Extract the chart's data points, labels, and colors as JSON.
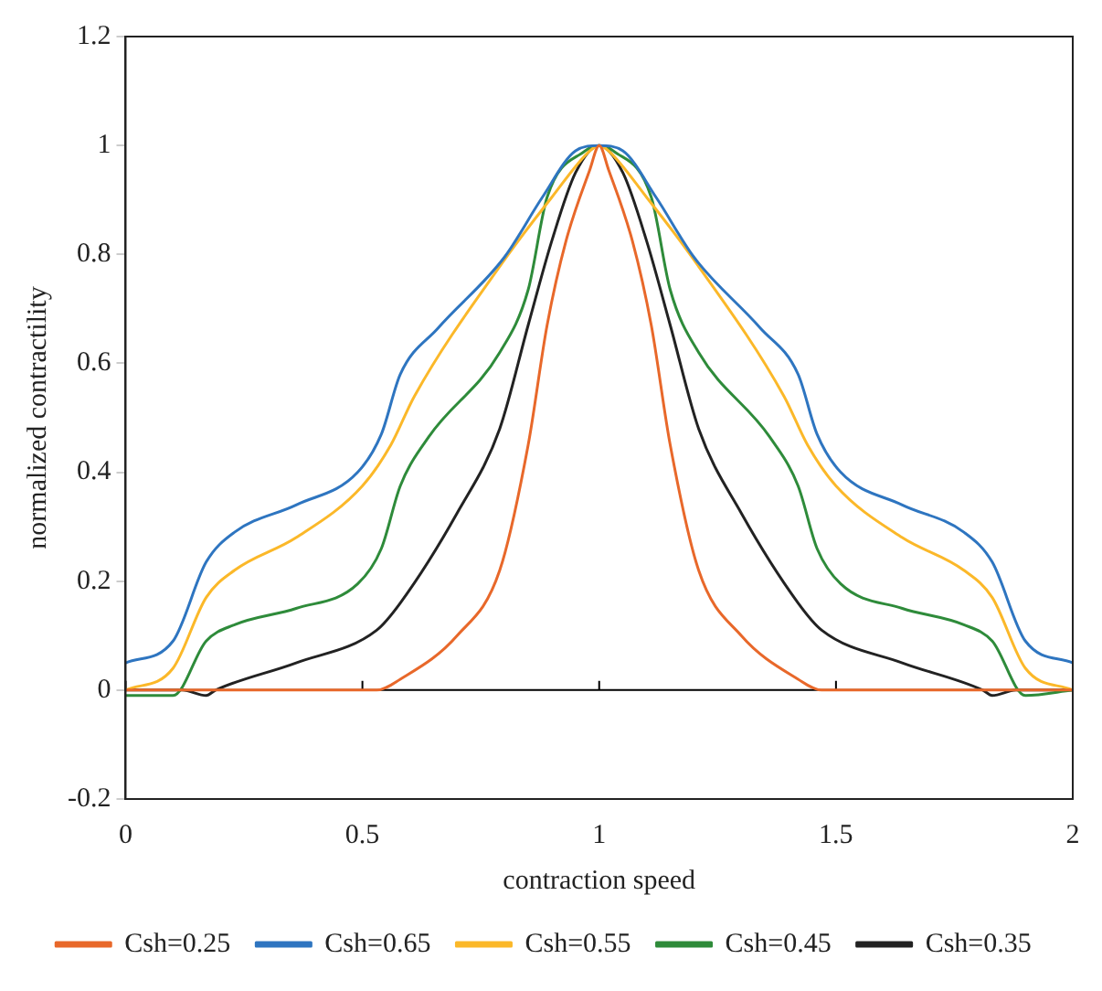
{
  "chart_data": {
    "type": "line",
    "xlabel": "contraction speed",
    "ylabel": "normalized contractility",
    "xlim": [
      0,
      2
    ],
    "xticks": [
      0,
      0.5,
      1,
      1.5,
      2
    ],
    "ylim": [
      -0.2,
      1.2
    ],
    "yticks": [
      -0.2,
      0,
      0.2,
      0.4,
      0.6,
      0.8,
      1,
      1.2
    ],
    "grid": false,
    "legend": "bottom",
    "marker": "none",
    "line_style": "solid",
    "ref_lines": [
      {
        "axis": "y",
        "value": 0,
        "color": "#000000"
      }
    ],
    "series": [
      {
        "name": "Csh=0.25",
        "color": "#e8682a",
        "x": [
          0,
          0.3,
          0.53,
          0.58,
          0.7,
          0.79,
          0.85,
          0.89,
          0.93,
          0.98,
          1,
          1.02,
          1.07,
          1.11,
          1.15,
          1.21,
          1.3,
          1.42,
          1.47,
          1.7,
          2
        ],
        "values": [
          0,
          0,
          0,
          0.02,
          0.1,
          0.22,
          0.45,
          0.67,
          0.825,
          0.955,
          1,
          0.955,
          0.825,
          0.67,
          0.45,
          0.22,
          0.1,
          0.02,
          0,
          0,
          0
        ]
      },
      {
        "name": "Csh=0.65",
        "color": "#2e75c0",
        "x": [
          0,
          0.1,
          0.17,
          0.23,
          0.36,
          0.49,
          0.54,
          0.58,
          0.66,
          0.8,
          0.88,
          0.95,
          1,
          1.05,
          1.12,
          1.2,
          1.34,
          1.42,
          1.46,
          1.51,
          1.64,
          1.77,
          1.83,
          1.9,
          2
        ],
        "values": [
          0.05,
          0.09,
          0.235,
          0.29,
          0.34,
          0.4,
          0.47,
          0.58,
          0.665,
          0.795,
          0.905,
          0.99,
          1,
          0.99,
          0.905,
          0.795,
          0.665,
          0.58,
          0.47,
          0.4,
          0.34,
          0.29,
          0.235,
          0.09,
          0.05
        ]
      },
      {
        "name": "Csh=0.55",
        "color": "#fbb829",
        "x": [
          0,
          0.1,
          0.17,
          0.23,
          0.36,
          0.5,
          0.56,
          0.61,
          0.8,
          0.9,
          0.98,
          1,
          1.02,
          1.1,
          1.2,
          1.39,
          1.44,
          1.5,
          1.64,
          1.77,
          1.83,
          1.9,
          2
        ],
        "values": [
          0,
          0.04,
          0.17,
          0.22,
          0.28,
          0.375,
          0.45,
          0.54,
          0.79,
          0.905,
          0.99,
          1,
          0.99,
          0.905,
          0.79,
          0.54,
          0.45,
          0.375,
          0.28,
          0.22,
          0.17,
          0.04,
          0
        ]
      },
      {
        "name": "Csh=0.45",
        "color": "#2e8b3a",
        "x": [
          0,
          0.1,
          0.17,
          0.23,
          0.36,
          0.49,
          0.54,
          0.58,
          0.64,
          0.79,
          0.85,
          0.89,
          0.97,
          1,
          1.03,
          1.11,
          1.15,
          1.21,
          1.36,
          1.42,
          1.46,
          1.51,
          1.64,
          1.77,
          1.83,
          1.9,
          2
        ],
        "values": [
          -0.01,
          -0.01,
          0.09,
          0.12,
          0.15,
          0.195,
          0.26,
          0.375,
          0.465,
          0.62,
          0.735,
          0.905,
          0.99,
          1,
          0.99,
          0.905,
          0.735,
          0.62,
          0.465,
          0.375,
          0.26,
          0.195,
          0.15,
          0.12,
          0.09,
          -0.01,
          0
        ]
      },
      {
        "name": "Csh=0.35",
        "color": "#222222",
        "x": [
          0,
          0.12,
          0.17,
          0.19,
          0.36,
          0.53,
          0.58,
          0.7,
          0.79,
          0.85,
          0.9,
          0.95,
          1,
          1.05,
          1.1,
          1.15,
          1.21,
          1.3,
          1.42,
          1.47,
          1.64,
          1.81,
          1.83,
          1.88,
          2
        ],
        "values": [
          0,
          0,
          -0.01,
          0,
          0.05,
          0.11,
          0.16,
          0.325,
          0.48,
          0.67,
          0.825,
          0.95,
          1,
          0.95,
          0.825,
          0.67,
          0.48,
          0.325,
          0.16,
          0.11,
          0.05,
          0,
          -0.01,
          0,
          0
        ]
      }
    ]
  }
}
